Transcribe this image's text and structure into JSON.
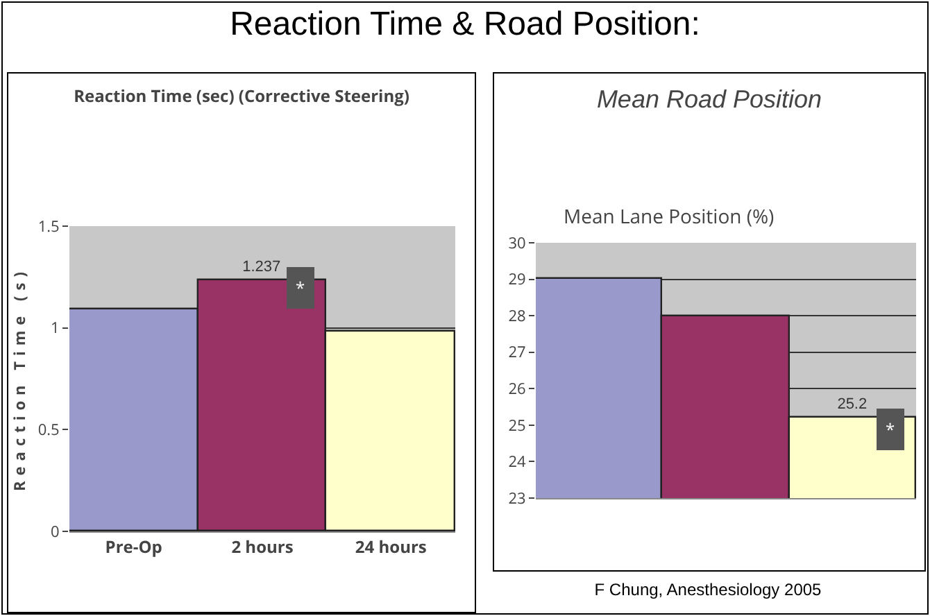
{
  "chart_data": [
    {
      "type": "other",
      "title": "Reaction Time & Road Position:"
    },
    {
      "type": "bar",
      "title": "Reaction Time (sec) (Corrective Steering)",
      "ylabel": "Reaction Time (s)",
      "categories": [
        "Pre-Op",
        "2 hours",
        "24 hours"
      ],
      "values": [
        1.09,
        1.237,
        0.98
      ],
      "colors": [
        "#9999cc",
        "#993366",
        "#ffffcc"
      ],
      "value_labels": [
        null,
        "1.237",
        null
      ],
      "ylim": [
        0,
        1.5
      ],
      "yticks": [
        0,
        0.5,
        1,
        1.5
      ],
      "grid": "y",
      "annotations": [
        {
          "text": "*",
          "x": "2 hours",
          "y": 1.2
        }
      ]
    },
    {
      "type": "bar",
      "title": "Mean Road Position",
      "subtitle": "Mean Lane Position (%)",
      "categories": [
        null,
        null,
        null
      ],
      "values": [
        29,
        28,
        25.2
      ],
      "colors": [
        "#9999cc",
        "#993366",
        "#ffffcc"
      ],
      "value_labels": [
        null,
        null,
        "25.2"
      ],
      "ylim": [
        23,
        30
      ],
      "yticks": [
        23,
        24,
        25,
        26,
        27,
        28,
        29,
        30
      ],
      "grid": "y",
      "tick_labels": "y",
      "annotations": [
        {
          "text": "*",
          "y": 24.9
        },
        "F Chung, Anesthesiology 2005"
      ]
    }
  ]
}
